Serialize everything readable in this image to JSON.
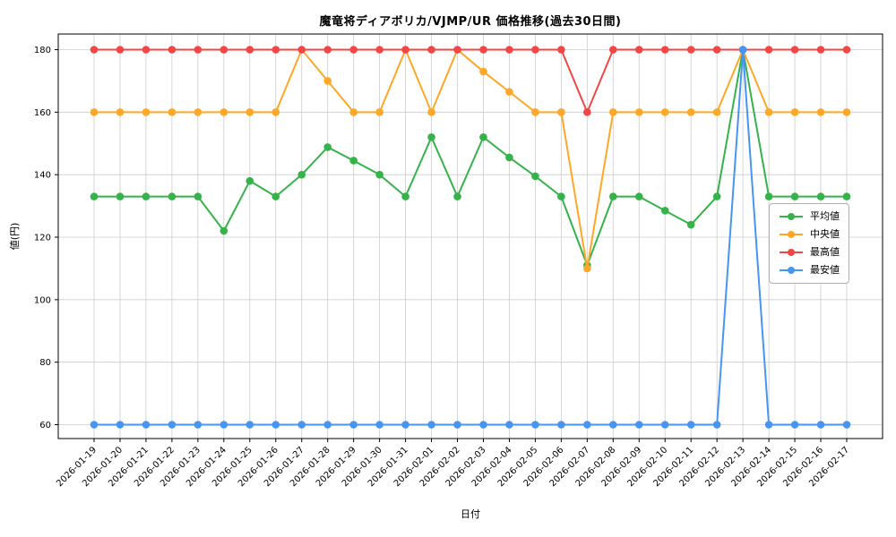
{
  "chart_data": {
    "type": "line",
    "title": "魔竜将ディアボリカ/VJMP/UR 価格推移(過去30日間)",
    "xlabel": "日付",
    "ylabel": "値(円)",
    "grid": true,
    "legend_position": "center-right",
    "yticks": [
      60,
      80,
      100,
      120,
      140,
      160,
      180
    ],
    "ylim": [
      55,
      185
    ],
    "x": [
      "2026-01-19",
      "2026-01-20",
      "2026-01-21",
      "2026-01-22",
      "2026-01-23",
      "2026-01-24",
      "2026-01-25",
      "2026-01-26",
      "2026-01-27",
      "2026-01-28",
      "2026-01-29",
      "2026-01-30",
      "2026-01-31",
      "2026-02-01",
      "2026-02-02",
      "2026-02-03",
      "2026-02-04",
      "2026-02-05",
      "2026-02-06",
      "2026-02-07",
      "2026-02-08",
      "2026-02-09",
      "2026-02-10",
      "2026-02-11",
      "2026-02-12",
      "2026-02-13",
      "2026-02-14",
      "2026-02-15",
      "2026-02-16",
      "2026-02-17"
    ],
    "series": [
      {
        "key": "average",
        "name": "平均値",
        "color": "#36b24a",
        "values": [
          133,
          133,
          133,
          133,
          133,
          122,
          138,
          133,
          140,
          148.8,
          144.5,
          140,
          133,
          152,
          133,
          152,
          145.5,
          139.5,
          133,
          111,
          133,
          133,
          128.5,
          124,
          133,
          180,
          133,
          133,
          133,
          133
        ]
      },
      {
        "key": "median",
        "name": "中央値",
        "color": "#ffa726",
        "values": [
          160,
          160,
          160,
          160,
          160,
          160,
          160,
          160,
          180,
          170,
          160,
          160,
          180,
          160,
          180,
          173,
          166.5,
          160,
          160,
          110,
          160,
          160,
          160,
          160,
          160,
          180,
          160,
          160,
          160,
          160
        ]
      },
      {
        "key": "highest",
        "name": "最高値",
        "color": "#f04746",
        "values": [
          180,
          180,
          180,
          180,
          180,
          180,
          180,
          180,
          180,
          180,
          180,
          180,
          180,
          180,
          180,
          180,
          180,
          180,
          180,
          160,
          180,
          180,
          180,
          180,
          180,
          180,
          180,
          180,
          180,
          180
        ]
      },
      {
        "key": "lowest",
        "name": "最安値",
        "color": "#4795f2",
        "values": [
          60,
          60,
          60,
          60,
          60,
          60,
          60,
          60,
          60,
          60,
          60,
          60,
          60,
          60,
          60,
          60,
          60,
          60,
          60,
          60,
          60,
          60,
          60,
          60,
          60,
          180,
          60,
          60,
          60,
          60
        ]
      }
    ]
  }
}
